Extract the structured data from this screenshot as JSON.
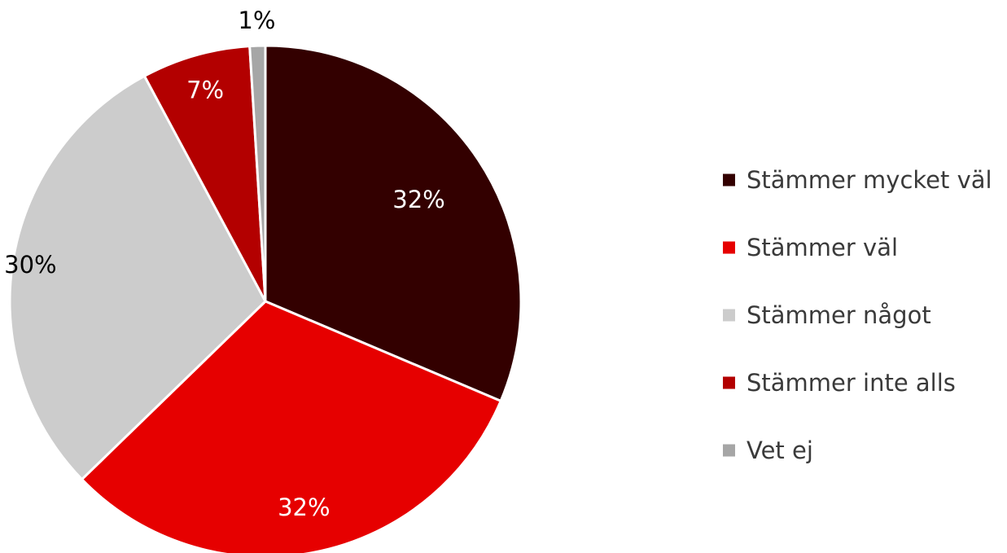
{
  "chart_data": {
    "type": "pie",
    "title": "",
    "categories": [
      "Stämmer mycket väl",
      "Stämmer väl",
      "Stämmer något",
      "Stämmer inte alls",
      "Vet ej"
    ],
    "values": [
      32,
      32,
      30,
      7,
      1
    ],
    "labels": [
      "32%",
      "32%",
      "30%",
      "7%",
      "1%"
    ],
    "colors": [
      "#330000",
      "#e60000",
      "#cccccc",
      "#b30000",
      "#a6a6a6"
    ],
    "label_colors": [
      "#ffffff",
      "#ffffff",
      "#000000",
      "#ffffff",
      "#000000"
    ],
    "start_angle_deg": 0,
    "direction": "clockwise",
    "legend_position": "right"
  }
}
